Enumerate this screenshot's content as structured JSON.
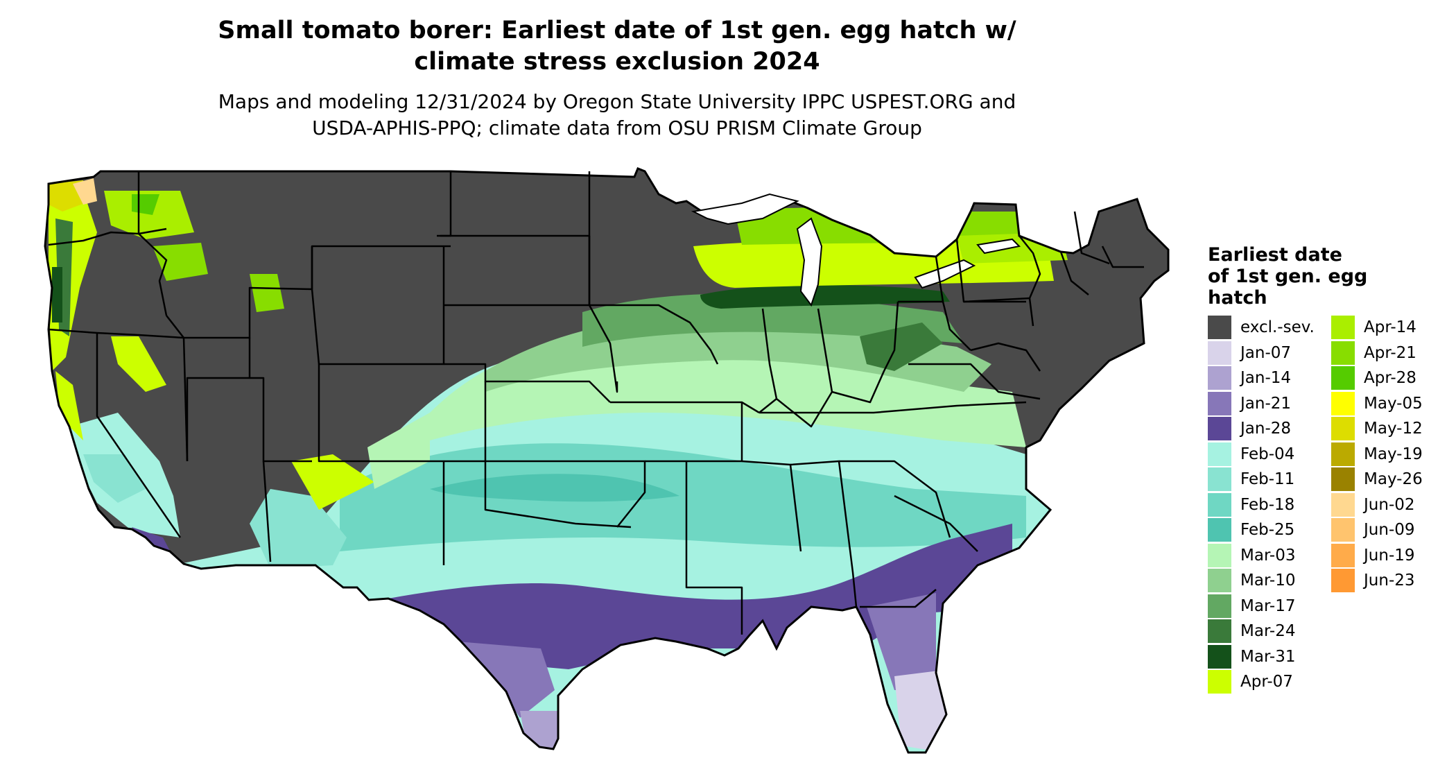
{
  "header": {
    "title_line1": "Small tomato borer: Earliest date of 1st gen. egg hatch w/",
    "title_line2": "climate stress exclusion 2024",
    "subtitle_line1": "Maps and modeling 12/31/2024 by Oregon State University IPPC USPEST.ORG and",
    "subtitle_line2": "USDA-APHIS-PPQ; climate data from OSU PRISM Climate Group"
  },
  "legend": {
    "title_line1": "Earliest date",
    "title_line2": "of 1st gen. egg",
    "title_line3": "hatch",
    "col1": [
      {
        "label": "excl.-sev.",
        "color": "#4a4a4a"
      },
      {
        "label": "Jan-07",
        "color": "#d9d3ea"
      },
      {
        "label": "Jan-14",
        "color": "#ada2d0"
      },
      {
        "label": "Jan-21",
        "color": "#8777b8"
      },
      {
        "label": "Jan-28",
        "color": "#5b4796"
      },
      {
        "label": "Feb-04",
        "color": "#a6f2e1"
      },
      {
        "label": "Feb-11",
        "color": "#89e3d1"
      },
      {
        "label": "Feb-18",
        "color": "#6fd7c3"
      },
      {
        "label": "Feb-25",
        "color": "#4fc4b0"
      },
      {
        "label": "Mar-03",
        "color": "#b5f5b5"
      },
      {
        "label": "Mar-10",
        "color": "#8fd08f"
      },
      {
        "label": "Mar-17",
        "color": "#62a862"
      },
      {
        "label": "Mar-24",
        "color": "#3a7a3a"
      },
      {
        "label": "Mar-31",
        "color": "#14511a"
      },
      {
        "label": "Apr-07",
        "color": "#ccff00"
      }
    ],
    "col2": [
      {
        "label": "Apr-14",
        "color": "#aaee00"
      },
      {
        "label": "Apr-21",
        "color": "#88dd00"
      },
      {
        "label": "Apr-28",
        "color": "#55cc00"
      },
      {
        "label": "May-05",
        "color": "#ffff00"
      },
      {
        "label": "May-12",
        "color": "#dddd00"
      },
      {
        "label": "May-19",
        "color": "#bbaa00"
      },
      {
        "label": "May-26",
        "color": "#9a8200"
      },
      {
        "label": "Jun-02",
        "color": "#ffd890"
      },
      {
        "label": "Jun-09",
        "color": "#ffc46e"
      },
      {
        "label": "Jun-19",
        "color": "#ffab4a"
      },
      {
        "label": "Jun-23",
        "color": "#ff9933"
      }
    ]
  }
}
